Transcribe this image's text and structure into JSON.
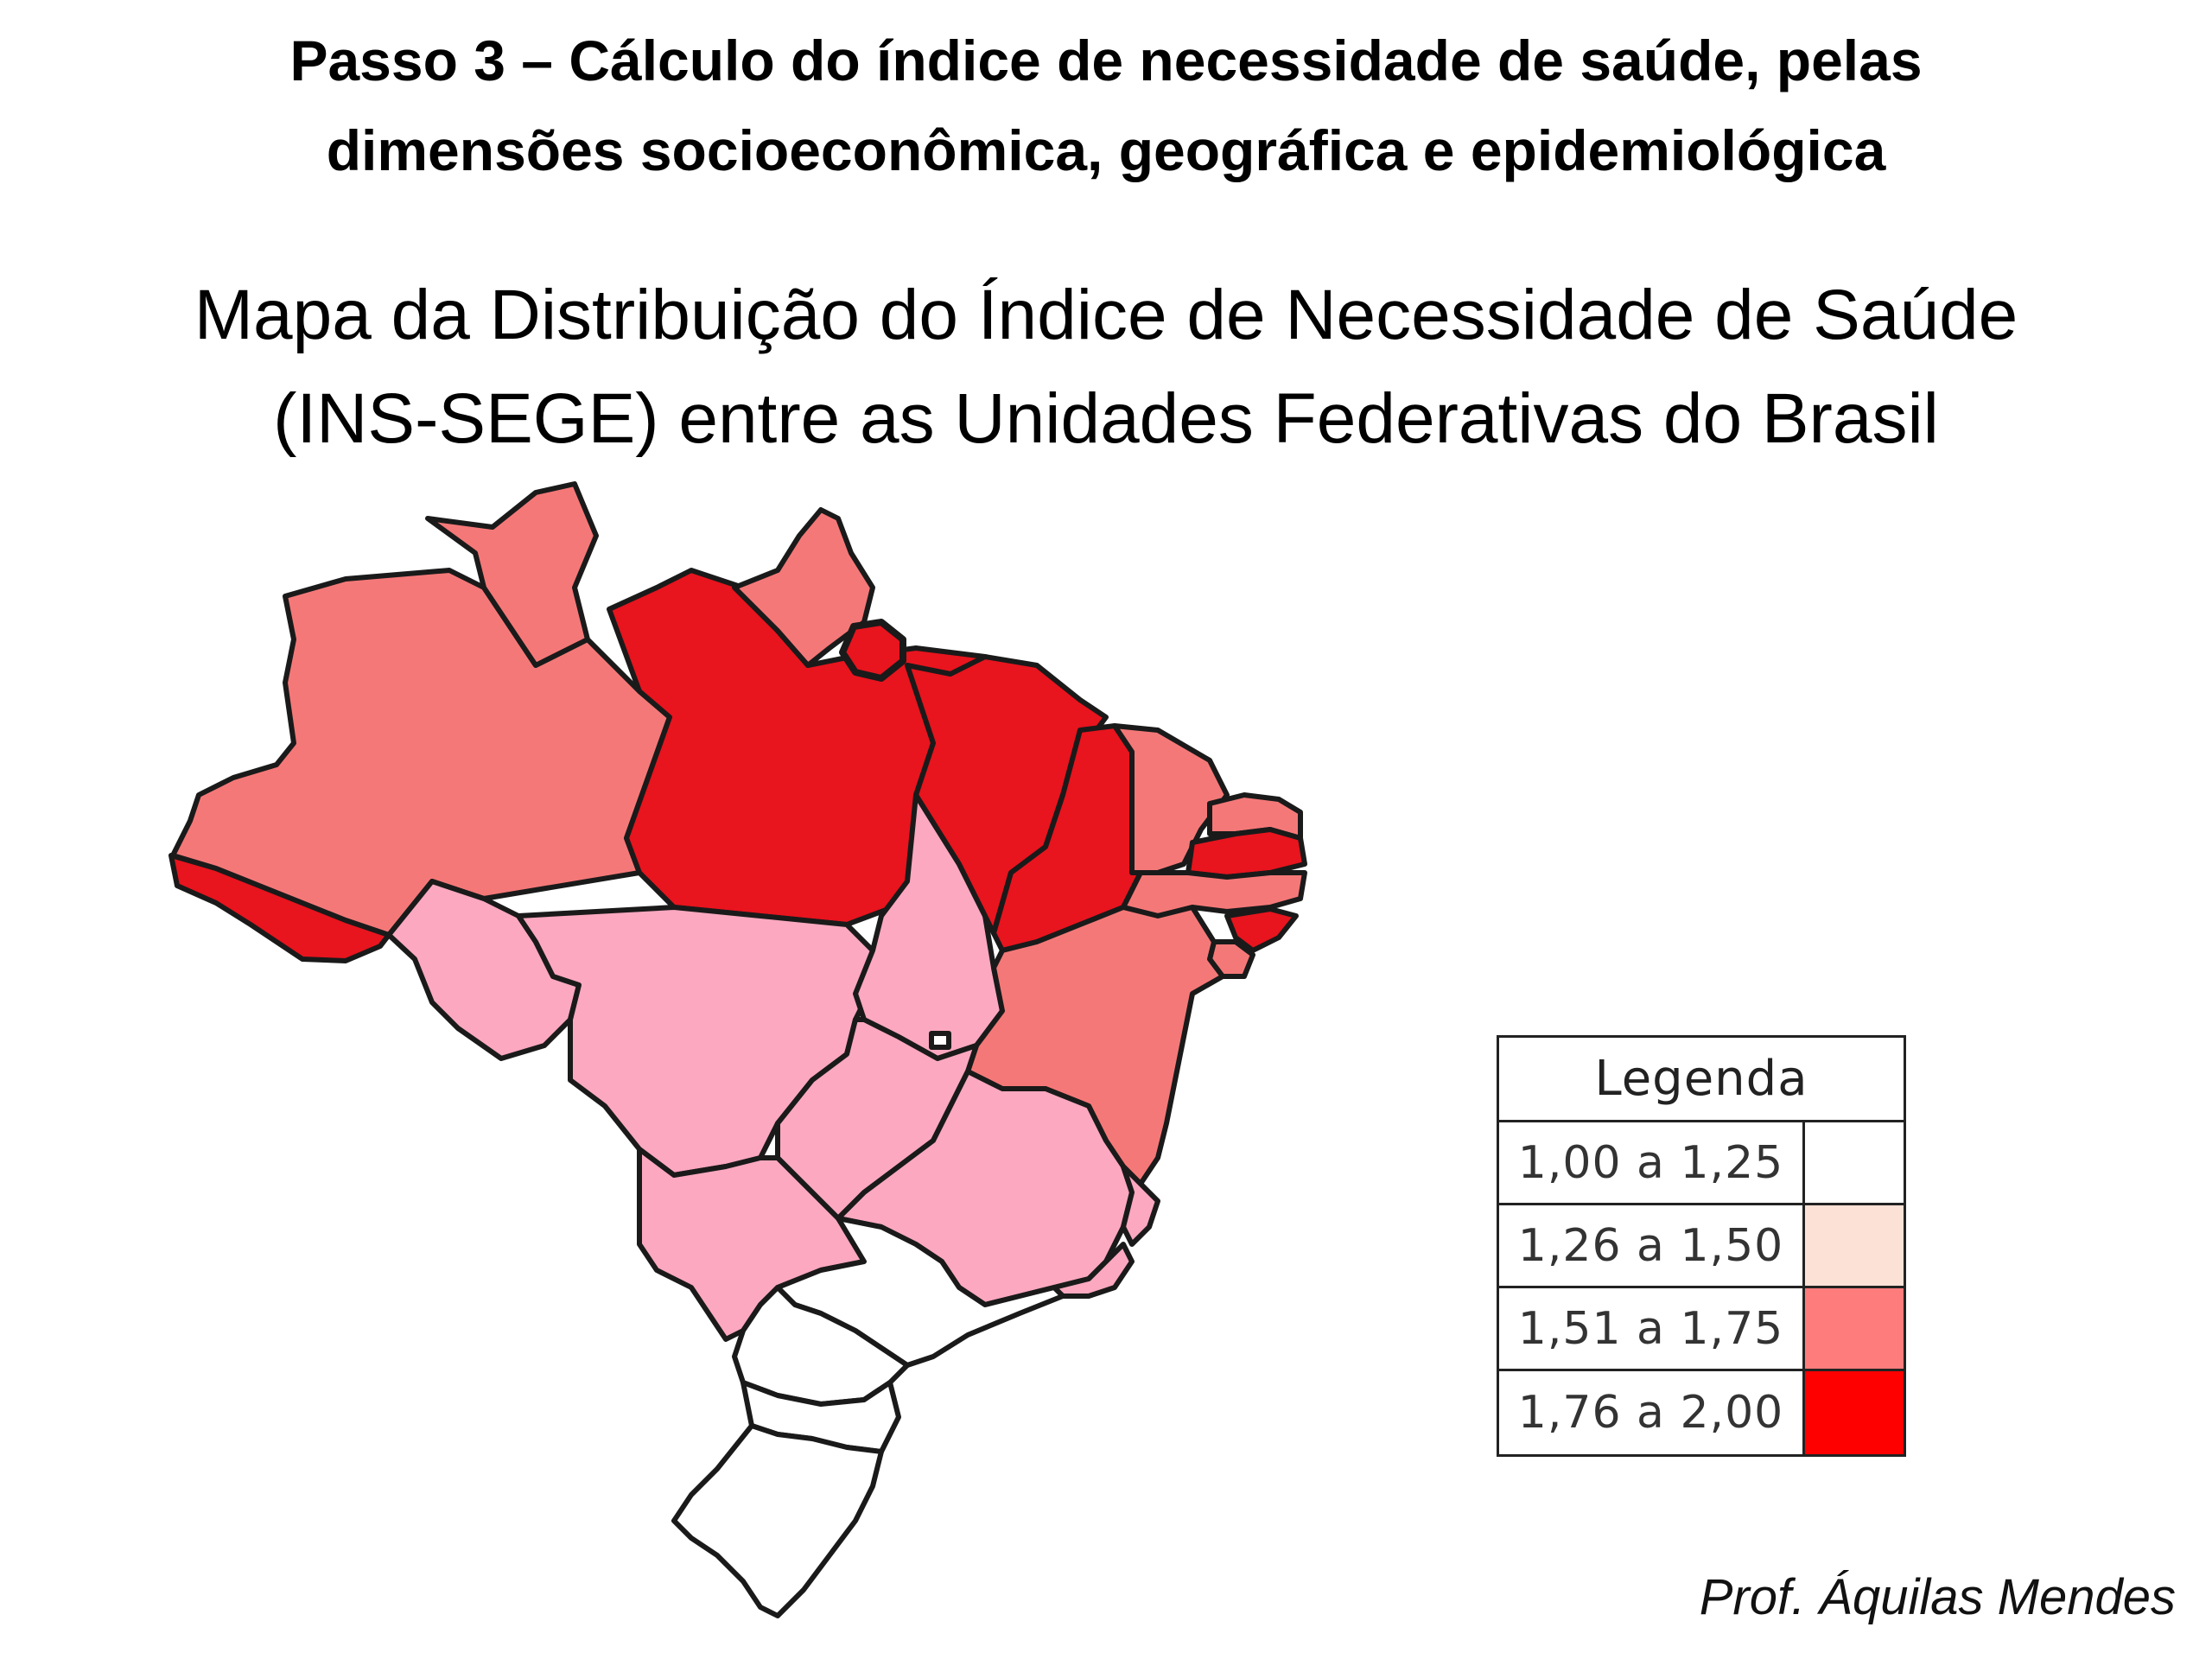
{
  "header": {
    "step_line1": "Passo 3 – Cálculo do índice de necessidade de saúde, pelas",
    "step_line2": "dimensões socioeconômica, geográfica e epidemiológica"
  },
  "map": {
    "title_line1": "Mapa da Distribuição do Índice de Necessidade de Saúde",
    "title_line2": "(INS-SEGE) entre as Unidades Federativas do Brasil",
    "border_color": "#1a1a1a",
    "regions": [
      {
        "name": "Acre",
        "class": "1,76 a 2,00"
      },
      {
        "name": "Amazonas",
        "class": "1,51 a 1,75"
      },
      {
        "name": "Roraima",
        "class": "1,51 a 1,75"
      },
      {
        "name": "Pará",
        "class": "1,76 a 2,00"
      },
      {
        "name": "Amapá",
        "class": "1,51 a 1,75"
      },
      {
        "name": "Ilha de Marajó",
        "class": "1,76 a 2,00"
      },
      {
        "name": "Rondônia",
        "class": "1,26 a 1,50"
      },
      {
        "name": "Mato Grosso",
        "class": "1,26 a 1,50"
      },
      {
        "name": "Tocantins",
        "class": "1,26 a 1,50"
      },
      {
        "name": "Maranhão",
        "class": "1,76 a 2,00"
      },
      {
        "name": "Piauí",
        "class": "1,76 a 2,00"
      },
      {
        "name": "Ceará",
        "class": "1,51 a 1,75"
      },
      {
        "name": "Rio Grande do Norte",
        "class": "1,51 a 1,75"
      },
      {
        "name": "Paraíba",
        "class": "1,76 a 2,00"
      },
      {
        "name": "Pernambuco",
        "class": "1,51 a 1,75"
      },
      {
        "name": "Alagoas",
        "class": "1,76 a 2,00"
      },
      {
        "name": "Sergipe",
        "class": "1,51 a 1,75"
      },
      {
        "name": "Bahia",
        "class": "1,51 a 1,75"
      },
      {
        "name": "Goiás",
        "class": "1,26 a 1,50"
      },
      {
        "name": "Distrito Federal",
        "class": "1,00 a 1,25"
      },
      {
        "name": "Mato Grosso do Sul",
        "class": "1,26 a 1,50"
      },
      {
        "name": "Minas Gerais",
        "class": "1,26 a 1,50"
      },
      {
        "name": "Espírito Santo",
        "class": "1,26 a 1,50"
      },
      {
        "name": "Rio de Janeiro",
        "class": "1,26 a 1,50"
      },
      {
        "name": "São Paulo",
        "class": "1,00 a 1,25"
      },
      {
        "name": "Paraná",
        "class": "1,00 a 1,25"
      },
      {
        "name": "Santa Catarina",
        "class": "1,00 a 1,25"
      },
      {
        "name": "Rio Grande do Sul",
        "class": "1,00 a 1,25"
      }
    ]
  },
  "legend": {
    "title": "Legenda",
    "items": [
      {
        "label": "1,00 a 1,25",
        "color": "#ffffff"
      },
      {
        "label": "1,26 a 1,50",
        "color": "#fce1d6"
      },
      {
        "label": "1,51 a 1,75",
        "color": "#ff7c7c"
      },
      {
        "label": "1,76 a 2,00",
        "color": "#ff0000"
      }
    ]
  },
  "map_fill_colors": {
    "1,00 a 1,25": "#ffffff",
    "1,26 a 1,50": "#fca8c0",
    "1,51 a 1,75": "#f57878",
    "1,76 a 2,00": "#e8141e"
  },
  "author": "Prof. Áquilas Mendes"
}
